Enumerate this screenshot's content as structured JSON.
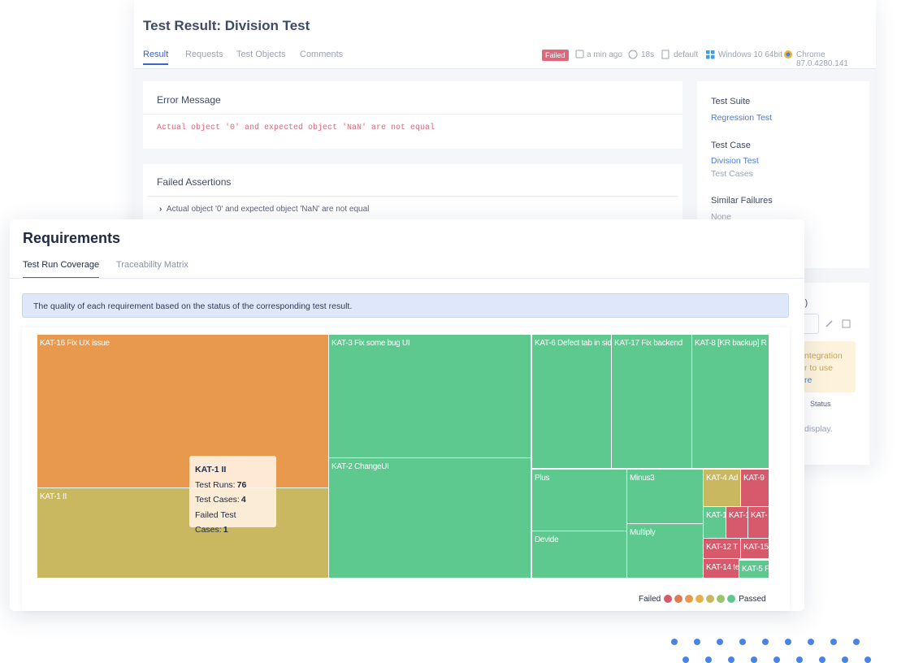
{
  "back_page": {
    "title": "Test Result: Division Test",
    "tabs": [
      "Result",
      "Requests",
      "Test Objects",
      "Comments"
    ],
    "status": "Failed",
    "meta": [
      "a min ago",
      "18s",
      "default",
      "Windows 10 64bit",
      "Chrome 87.0.4280.141"
    ],
    "error_message": {
      "heading": "Error Message",
      "text": "Actual object '0' and expected object 'NaN' are not equal"
    },
    "failed_assertions": {
      "heading": "Failed Assertions",
      "items": [
        "Actual object '0' and expected object 'NaN' are not equal"
      ]
    },
    "sidebar": {
      "test_suite_label": "Test Suite",
      "test_suite": "Regression Test",
      "test_case_label": "Test Case",
      "test_case": "Division Test",
      "test_case_folder": "Test Cases",
      "similar_label": "Similar Failures",
      "similar": "None"
    },
    "second_panel": [
      "l)",
      "ntegration",
      "r to use",
      "re",
      "Status",
      "display."
    ]
  },
  "requirements": {
    "title": "Requirements",
    "tabs": [
      "Test Run Coverage",
      "Traceability Matrix"
    ],
    "info": "The quality of each requirement based on the status of the corresponding test result.",
    "treemap": {
      "cells": [
        {
          "label": "KAT-16 Fix UX issue",
          "color": "#e8994e"
        },
        {
          "label": "KAT-1 II",
          "color": "#c9b85f"
        },
        {
          "label": "KAT-3 Fix some bug UI",
          "color": "#5dc98e"
        },
        {
          "label": "KAT-2 ChangeUI",
          "color": "#5dc98e"
        },
        {
          "label": "KAT-6 Defect tab in sid",
          "color": "#5dc98e"
        },
        {
          "label": "KAT-17 Fix backend",
          "color": "#5dc98e"
        },
        {
          "label": "KAT-8 [KR backup] R",
          "color": "#5dc98e"
        },
        {
          "label": "Plus",
          "color": "#5dc98e"
        },
        {
          "label": "Devide",
          "color": "#5dc98e"
        },
        {
          "label": "Minus3",
          "color": "#5dc98e"
        },
        {
          "label": "Multiply",
          "color": "#5dc98e"
        },
        {
          "label": "KAT-4 Ad",
          "color": "#c9b85f"
        },
        {
          "label": "KAT-9",
          "color": "#d65a6c"
        },
        {
          "label": "KAT-1",
          "color": "#5dc98e"
        },
        {
          "label": "KAT-1",
          "color": "#d65a6c"
        },
        {
          "label": "KAT-",
          "color": "#d65a6c"
        },
        {
          "label": "KAT-12 T",
          "color": "#d65a6c"
        },
        {
          "label": "KAT-15",
          "color": "#d65a6c"
        },
        {
          "label": "KAT-14 te",
          "color": "#d65a6c"
        },
        {
          "label": "KAT-5 F",
          "color": "#5dc98e"
        }
      ],
      "tooltip": {
        "title": "KAT-1 II",
        "rows": [
          {
            "label": "Test Runs:",
            "value": "76"
          },
          {
            "label": "Test Cases:",
            "value": "4"
          },
          {
            "label": "Failed Test Cases:",
            "value": "1"
          }
        ]
      }
    },
    "legend": {
      "low": "Failed",
      "high": "Passed",
      "colors": [
        "#d65a6c",
        "#e07a52",
        "#e8994e",
        "#e8b04a",
        "#c9b85f",
        "#9cc46e",
        "#5dc98e"
      ]
    }
  }
}
